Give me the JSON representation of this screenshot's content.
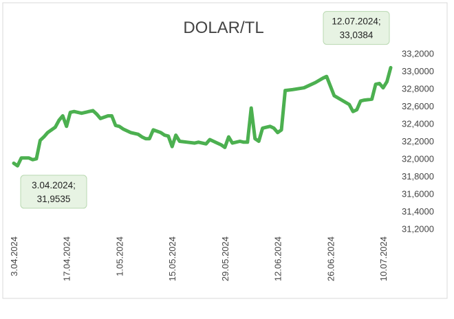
{
  "colors": {
    "line": "#4cb050",
    "callout_fill": "#e7f3e3",
    "callout_stroke": "#b8d8b0",
    "axis_text": "#444444",
    "frame": "#d9d9d9"
  },
  "chart_data": {
    "type": "line",
    "title": "DOLAR/TL",
    "xlabel": "",
    "ylabel": "",
    "ylim": [
      31.2,
      33.2
    ],
    "y_ticks": [
      "31,2000",
      "31,4000",
      "31,6000",
      "31,8000",
      "32,0000",
      "32,2000",
      "32,4000",
      "32,6000",
      "32,8000",
      "33,0000",
      "33,2000"
    ],
    "y_tick_values": [
      31.2,
      31.4,
      31.6,
      31.8,
      32.0,
      32.2,
      32.4,
      32.6,
      32.8,
      33.0,
      33.2
    ],
    "x_ticks": [
      "3.04.2024",
      "17.04.2024",
      "1.05.2024",
      "15.05.2024",
      "29.05.2024",
      "12.06.2024",
      "26.06.2024",
      "10.07.2024"
    ],
    "x_tick_values": [
      "2024-04-03",
      "2024-04-17",
      "2024-05-01",
      "2024-05-15",
      "2024-05-29",
      "2024-06-12",
      "2024-06-26",
      "2024-07-10"
    ],
    "grid": false,
    "legend": "none",
    "series": [
      {
        "points": [
          [
            "2024-04-03",
            31.95
          ],
          [
            "2024-04-04",
            31.92
          ],
          [
            "2024-04-05",
            32.01
          ],
          [
            "2024-04-07",
            32.01
          ],
          [
            "2024-04-08",
            31.99
          ],
          [
            "2024-04-09",
            32.0
          ],
          [
            "2024-04-10",
            32.21
          ],
          [
            "2024-04-11",
            32.25
          ],
          [
            "2024-04-12",
            32.3
          ],
          [
            "2024-04-14",
            32.36
          ],
          [
            "2024-04-15",
            32.44
          ],
          [
            "2024-04-16",
            32.49
          ],
          [
            "2024-04-17",
            32.37
          ],
          [
            "2024-04-18",
            32.53
          ],
          [
            "2024-04-19",
            32.54
          ],
          [
            "2024-04-21",
            32.52
          ],
          [
            "2024-04-22",
            32.53
          ],
          [
            "2024-04-24",
            32.55
          ],
          [
            "2024-04-25",
            32.51
          ],
          [
            "2024-04-26",
            32.46
          ],
          [
            "2024-04-28",
            32.49
          ],
          [
            "2024-04-29",
            32.49
          ],
          [
            "2024-04-30",
            32.38
          ],
          [
            "2024-05-01",
            32.37
          ],
          [
            "2024-05-02",
            32.34
          ],
          [
            "2024-05-04",
            32.3
          ],
          [
            "2024-05-06",
            32.28
          ],
          [
            "2024-05-07",
            32.25
          ],
          [
            "2024-05-08",
            32.23
          ],
          [
            "2024-05-09",
            32.23
          ],
          [
            "2024-05-10",
            32.33
          ],
          [
            "2024-05-12",
            32.3
          ],
          [
            "2024-05-13",
            32.27
          ],
          [
            "2024-05-14",
            32.26
          ],
          [
            "2024-05-15",
            32.14
          ],
          [
            "2024-05-16",
            32.27
          ],
          [
            "2024-05-17",
            32.2
          ],
          [
            "2024-05-19",
            32.19
          ],
          [
            "2024-05-21",
            32.18
          ],
          [
            "2024-05-22",
            32.19
          ],
          [
            "2024-05-23",
            32.18
          ],
          [
            "2024-05-24",
            32.17
          ],
          [
            "2024-05-25",
            32.22
          ],
          [
            "2024-05-27",
            32.18
          ],
          [
            "2024-05-28",
            32.16
          ],
          [
            "2024-05-29",
            32.13
          ],
          [
            "2024-05-30",
            32.25
          ],
          [
            "2024-05-31",
            32.18
          ],
          [
            "2024-06-02",
            32.2
          ],
          [
            "2024-06-03",
            32.19
          ],
          [
            "2024-06-04",
            32.19
          ],
          [
            "2024-06-05",
            32.58
          ],
          [
            "2024-06-06",
            32.23
          ],
          [
            "2024-06-07",
            32.2
          ],
          [
            "2024-06-08",
            32.35
          ],
          [
            "2024-06-09",
            32.36
          ],
          [
            "2024-06-10",
            32.37
          ],
          [
            "2024-06-11",
            32.35
          ],
          [
            "2024-06-12",
            32.3
          ],
          [
            "2024-06-13",
            32.33
          ],
          [
            "2024-06-14",
            32.78
          ],
          [
            "2024-06-16",
            32.79
          ],
          [
            "2024-06-19",
            32.81
          ],
          [
            "2024-06-20",
            32.83
          ],
          [
            "2024-06-22",
            32.87
          ],
          [
            "2024-06-24",
            32.92
          ],
          [
            "2024-06-25",
            32.94
          ],
          [
            "2024-06-27",
            32.72
          ],
          [
            "2024-06-29",
            32.67
          ],
          [
            "2024-07-01",
            32.62
          ],
          [
            "2024-07-02",
            32.54
          ],
          [
            "2024-07-03",
            32.56
          ],
          [
            "2024-07-04",
            32.66
          ],
          [
            "2024-07-05",
            32.67
          ],
          [
            "2024-07-07",
            32.68
          ],
          [
            "2024-07-08",
            32.85
          ],
          [
            "2024-07-09",
            32.86
          ],
          [
            "2024-07-10",
            32.81
          ],
          [
            "2024-07-11",
            32.88
          ],
          [
            "2024-07-12",
            33.04
          ]
        ]
      }
    ],
    "annotations": [
      {
        "text_line1": "3.04.2024;",
        "text_line2": "31,9535",
        "date": "2024-04-03",
        "value": 31.9535,
        "position": "below-right"
      },
      {
        "text_line1": "12.07.2024;",
        "text_line2": "33,0384",
        "date": "2024-07-12",
        "value": 33.0384,
        "position": "above-left"
      }
    ]
  }
}
